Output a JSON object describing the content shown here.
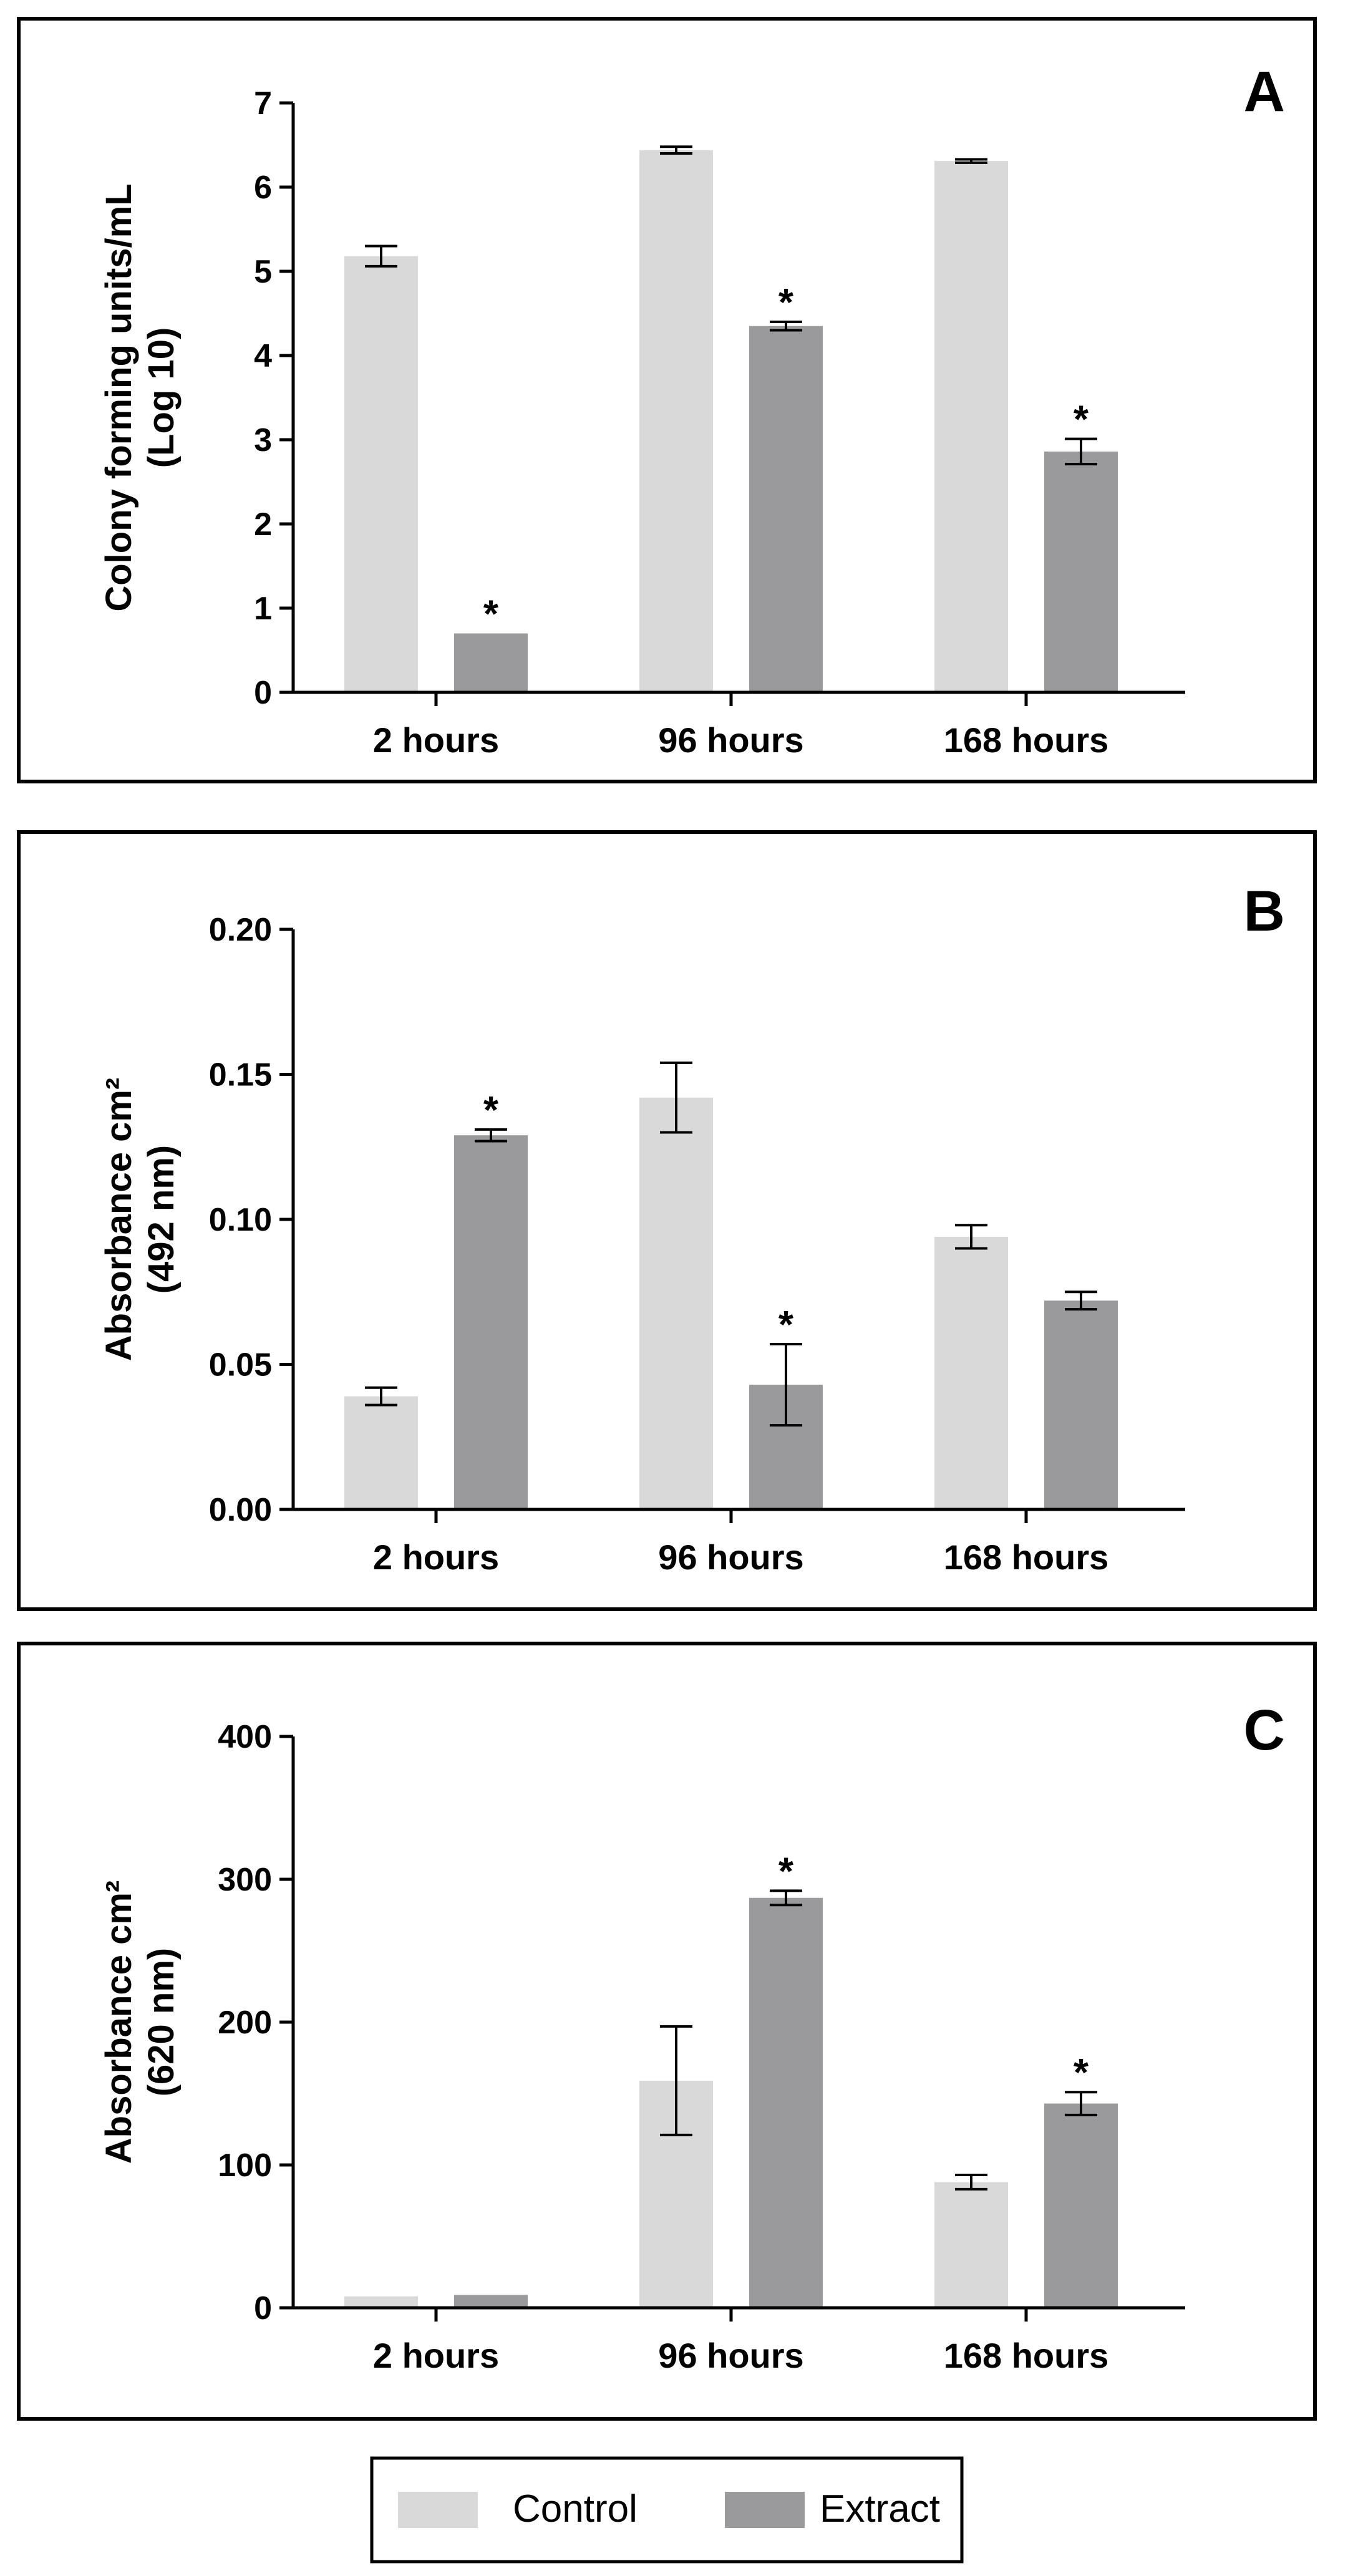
{
  "colors": {
    "control": "#d9d9d9",
    "extract": "#9a9a9c",
    "axis": "#000000"
  },
  "legend": {
    "items": [
      {
        "label": "Control",
        "series": "control"
      },
      {
        "label": "Extract",
        "series": "extract"
      }
    ]
  },
  "chart_data": [
    {
      "type": "bar",
      "panel": "A",
      "title": "",
      "xlabel": "",
      "ylabel": [
        "Colony forming units/mL",
        "(Log 10)"
      ],
      "categories": [
        "2 hours",
        "96 hours",
        "168 hours"
      ],
      "ylim": [
        0,
        7
      ],
      "yticks": [
        "0",
        "1",
        "2",
        "3",
        "4",
        "5",
        "6",
        "7"
      ],
      "ytick_values": [
        0,
        1,
        2,
        3,
        4,
        5,
        6,
        7
      ],
      "series": [
        {
          "name": "Control",
          "key": "control",
          "values": [
            5.18,
            6.44,
            6.31
          ],
          "errors": [
            0.12,
            0.04,
            0.02
          ],
          "significant": [
            false,
            false,
            false
          ]
        },
        {
          "name": "Extract",
          "key": "extract",
          "values": [
            0.7,
            4.35,
            2.86
          ],
          "errors": [
            0.0,
            0.05,
            0.15
          ],
          "significant": [
            true,
            true,
            true
          ]
        }
      ]
    },
    {
      "type": "bar",
      "panel": "B",
      "title": "",
      "xlabel": "",
      "ylabel": [
        "Absorbance cm²",
        "(492 nm)"
      ],
      "categories": [
        "2 hours",
        "96 hours",
        "168 hours"
      ],
      "ylim": [
        0,
        0.2
      ],
      "yticks": [
        "0.00",
        "0.05",
        "0.10",
        "0.15",
        "0.20"
      ],
      "ytick_values": [
        0,
        0.05,
        0.1,
        0.15,
        0.2
      ],
      "series": [
        {
          "name": "Control",
          "key": "control",
          "values": [
            0.039,
            0.142,
            0.094
          ],
          "errors": [
            0.003,
            0.012,
            0.004
          ],
          "significant": [
            false,
            false,
            false
          ]
        },
        {
          "name": "Extract",
          "key": "extract",
          "values": [
            0.129,
            0.043,
            0.072
          ],
          "errors": [
            0.002,
            0.014,
            0.003
          ],
          "significant": [
            true,
            true,
            false
          ]
        }
      ]
    },
    {
      "type": "bar",
      "panel": "C",
      "title": "",
      "xlabel": "",
      "ylabel": [
        "Absorbance cm²",
        "(620 nm)"
      ],
      "categories": [
        "2 hours",
        "96 hours",
        "168 hours"
      ],
      "ylim": [
        0,
        400
      ],
      "yticks": [
        "0",
        "100",
        "200",
        "300",
        "400"
      ],
      "ytick_values": [
        0,
        100,
        200,
        300,
        400
      ],
      "series": [
        {
          "name": "Control",
          "key": "control",
          "values": [
            8,
            159,
            88
          ],
          "errors": [
            0,
            38,
            5
          ],
          "significant": [
            false,
            false,
            false
          ]
        },
        {
          "name": "Extract",
          "key": "extract",
          "values": [
            9,
            287,
            143
          ],
          "errors": [
            0,
            5,
            8
          ],
          "significant": [
            false,
            true,
            true
          ]
        }
      ]
    }
  ]
}
